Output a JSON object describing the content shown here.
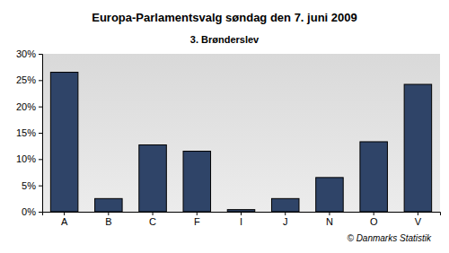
{
  "chart_data": {
    "type": "bar",
    "title": "Europa-Parlamentsvalg søndag den 7. juni 2009",
    "subtitle": "3. Brønderslev",
    "annotations": [
      "© Danmarks Statistik"
    ],
    "categories": [
      "A",
      "B",
      "C",
      "F",
      "I",
      "J",
      "N",
      "O",
      "V"
    ],
    "values": [
      26.5,
      2.5,
      12.7,
      11.5,
      0.4,
      2.5,
      6.5,
      13.3,
      24.2
    ],
    "color": "#2f4468",
    "ylim": [
      0,
      30
    ],
    "yticks": [
      {
        "value": 0,
        "label": "0%"
      },
      {
        "value": 5,
        "label": "5%"
      },
      {
        "value": 10,
        "label": "10%"
      },
      {
        "value": 15,
        "label": "15%"
      },
      {
        "value": 20,
        "label": "20%"
      },
      {
        "value": 25,
        "label": "25%"
      },
      {
        "value": 30,
        "label": "30%"
      }
    ],
    "grid": false
  }
}
